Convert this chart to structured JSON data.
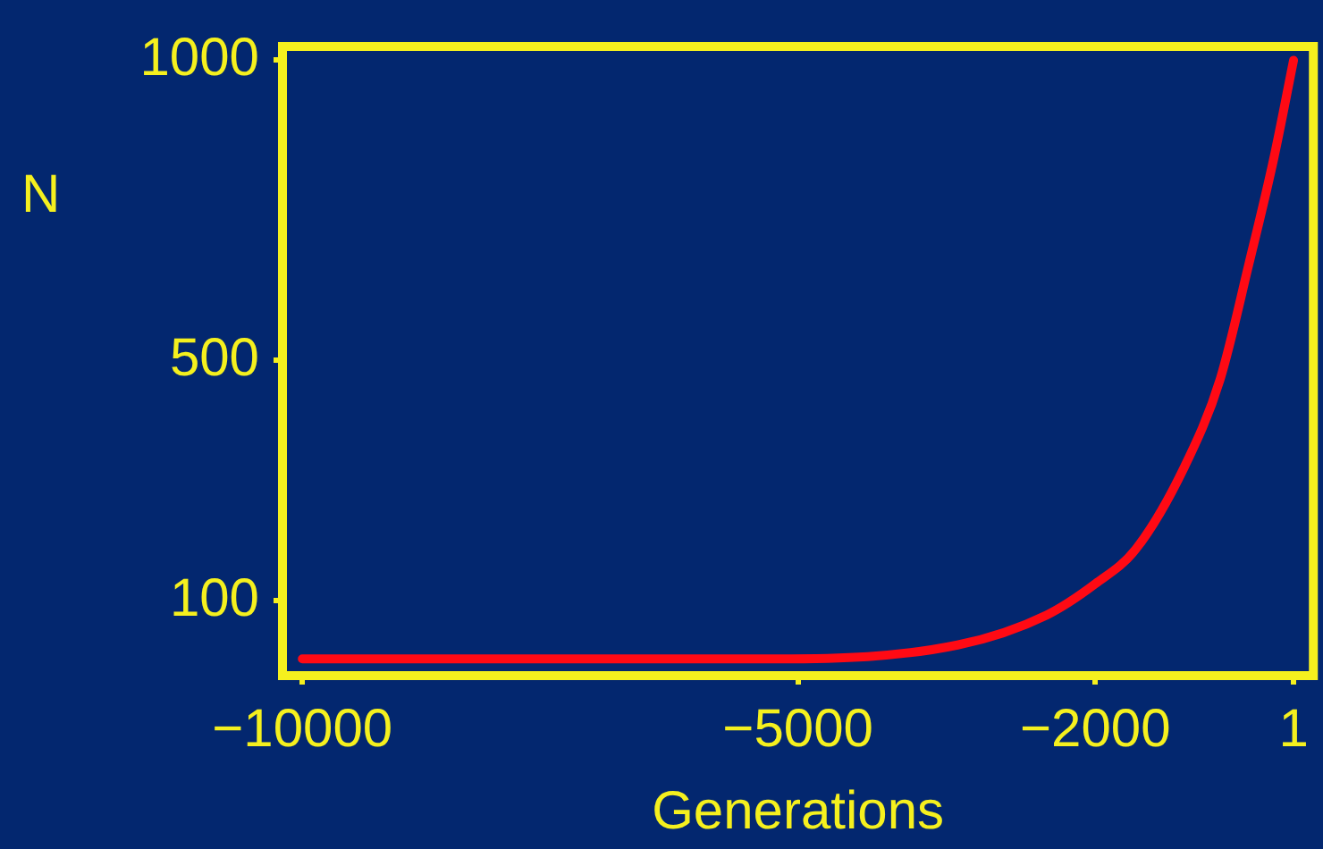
{
  "chart_data": {
    "type": "line",
    "xlabel": "Generations",
    "ylabel": "N",
    "x": [
      -10000,
      -5200,
      -3390,
      -2490,
      -2000,
      -1590,
      -1100,
      -740,
      -450,
      -200,
      0
    ],
    "series": [
      {
        "color": "#ff0a14",
        "values": [
          3,
          3,
          26,
          76,
          128,
          186,
          323,
          469,
          661,
          836,
          1000
        ]
      }
    ],
    "xlim": [
      -10200,
      200
    ],
    "xticks": [
      {
        "value": -10000,
        "label": "−10000"
      },
      {
        "value": -5000,
        "label": "−5000"
      },
      {
        "value": -2000,
        "label": "−2000"
      },
      1
    ],
    "ylim": [
      -25,
      1023
    ],
    "yticks": [
      100,
      500,
      1000
    ],
    "grid": false,
    "legend": false,
    "marker": "none",
    "line_style": "solid"
  }
}
